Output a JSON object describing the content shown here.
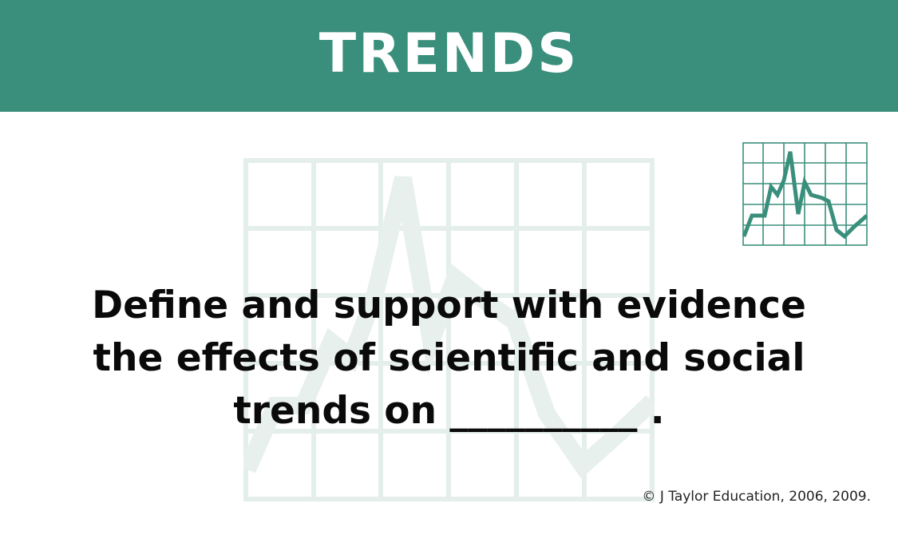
{
  "slide": {
    "title": "TRENDS",
    "prompt_lines": [
      "Define and support with evidence",
      "the effects of scientific and social",
      "trends on __________ ."
    ],
    "copyright": "© J Taylor Education, 2006, 2009."
  },
  "colors": {
    "accent": "#3a8f7c",
    "watermark": "#e4eeeb",
    "text": "#0a0a0a"
  },
  "icons": {
    "chart": "line-chart-icon",
    "watermark": "line-chart-watermark"
  }
}
